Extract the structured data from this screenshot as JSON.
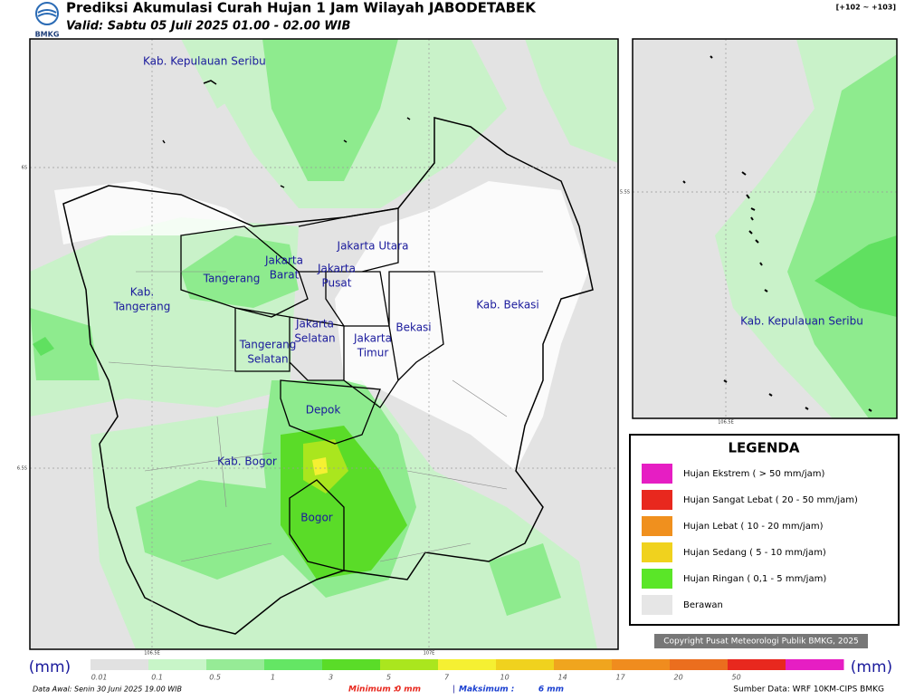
{
  "header": {
    "logo": "BMKG",
    "title": "Prediksi Akumulasi Curah Hujan 1 Jam Wilayah JABODETABEK",
    "subtitle": "Valid: Sabtu 05 Juli 2025 01.00 - 02.00 WIB",
    "corner": "[+102 ~ +103]"
  },
  "map": {
    "labels": [
      [
        "Kab. Kepulauan Seribu"
      ],
      [
        "Jakarta Utara"
      ],
      [
        "Jakarta",
        "Barat"
      ],
      [
        "Jakarta",
        "Pusat"
      ],
      [
        "Tangerang"
      ],
      [
        "Kab.",
        "Tangerang"
      ],
      [
        "Kab. Bekasi"
      ],
      [
        "Jakarta",
        "Selatan"
      ],
      [
        "Bekasi"
      ],
      [
        "Jakarta",
        "Timur"
      ],
      [
        "Tangerang",
        "Selatan"
      ],
      [
        "Depok"
      ],
      [
        "Kab. Bogor"
      ],
      [
        "Bogor"
      ]
    ],
    "grid_labels": [
      "6S",
      "6.5S",
      "106.5E",
      "107E"
    ]
  },
  "inset": {
    "label": "Kab. Kepulauan Seribu",
    "grid_labels": [
      "5.5S",
      "106.5E"
    ]
  },
  "legend": {
    "title": "LEGENDA",
    "items": [
      {
        "name": "Hujan Ekstrem ( > 50 mm/jam)",
        "color": "#e61ec3"
      },
      {
        "name": "Hujan Sangat Lebat ( 20 - 50 mm/jam)",
        "color": "#e8281e"
      },
      {
        "name": "Hujan Lebat ( 10 - 20 mm/jam)",
        "color": "#f0901e"
      },
      {
        "name": "Hujan Sedang ( 5 - 10 mm/jam)",
        "color": "#f0d21e"
      },
      {
        "name": "Hujan Ringan ( 0,1 - 5 mm/jam)",
        "color": "#5ae628"
      },
      {
        "name": "Berawan",
        "color": "#e6e6e6"
      }
    ],
    "copyright": "Copyright Pusat Meteorologi Publik BMKG, 2025"
  },
  "colorbar": {
    "unit": "(mm)",
    "ticks": [
      "0.01",
      "0.1",
      "0.5",
      "1",
      "3",
      "5",
      "7",
      "10",
      "14",
      "17",
      "20",
      "50"
    ],
    "colors": [
      "#e1e1e1",
      "#c8f5c8",
      "#96eb96",
      "#64e664",
      "#5adc28",
      "#aae61e",
      "#f5f032",
      "#f0d21e",
      "#f0a51e",
      "#f08c1e",
      "#eb6e1e",
      "#e8281e",
      "#e61ec3"
    ]
  },
  "footer": {
    "data_awal": "Data Awal: Senin 30 Juni 2025 19.00 WIB",
    "min_label": "Minimum :",
    "min_value": "0 mm",
    "separator": "|",
    "max_label": "Maksimum :",
    "max_value": "6 mm",
    "source": "Sumber Data: WRF 10KM-CIPS BMKG"
  }
}
